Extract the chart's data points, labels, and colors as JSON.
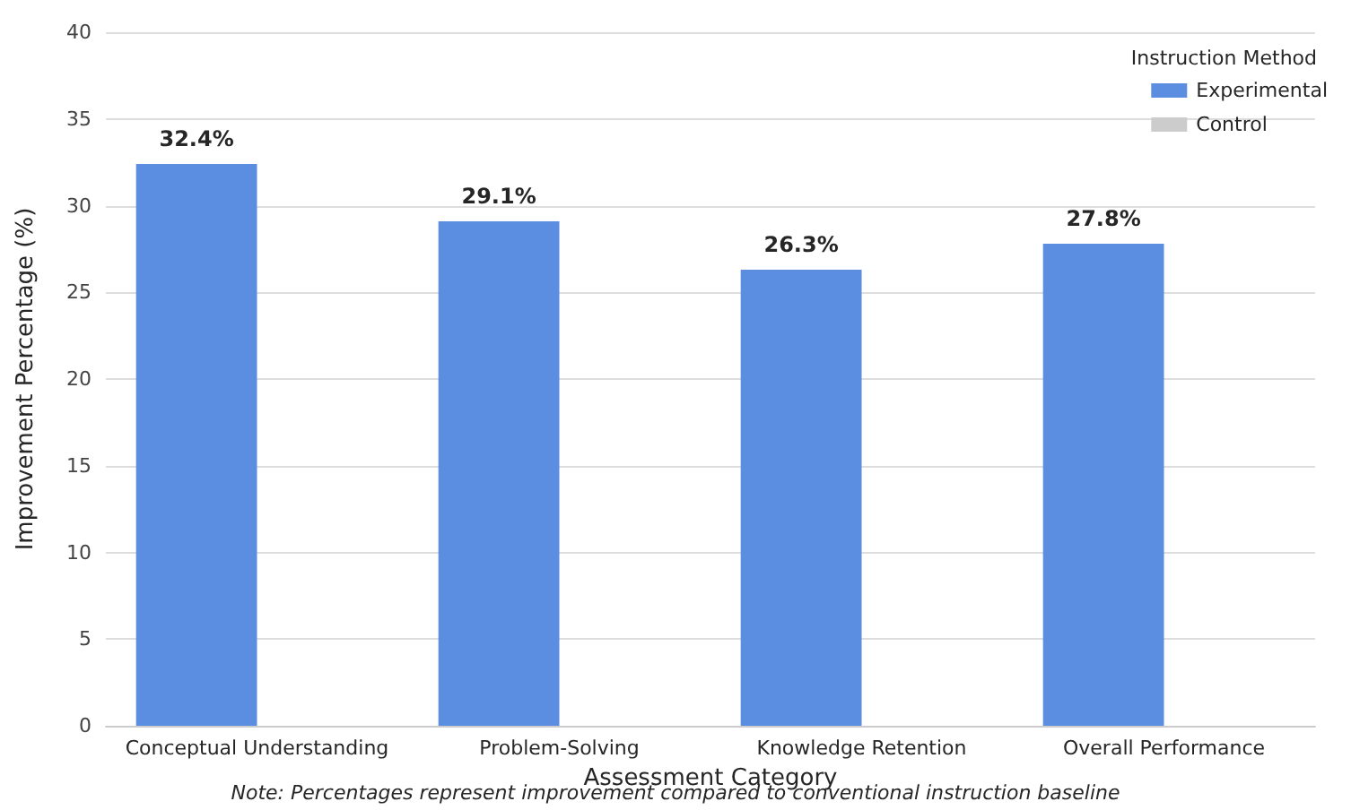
{
  "chart_data": {
    "type": "bar",
    "xlabel": "Assessment Category",
    "ylabel": "Improvement Percentage (%)",
    "legend_title": "Instruction Method",
    "categories": [
      "Conceptual Understanding",
      "Problem-Solving",
      "Knowledge Retention",
      "Overall Performance"
    ],
    "series": [
      {
        "name": "Experimental",
        "color": "#5b8de0",
        "values": [
          32.4,
          29.1,
          26.3,
          27.8
        ],
        "value_labels": [
          "32.4%",
          "29.1%",
          "26.3%",
          "27.8%"
        ]
      },
      {
        "name": "Control",
        "color": "#cccccc",
        "values": [
          0,
          0,
          0,
          0
        ],
        "value_labels": [
          null,
          null,
          null,
          null
        ]
      }
    ],
    "ylim": [
      0,
      40
    ],
    "yticks": [
      0,
      5,
      10,
      15,
      20,
      25,
      30,
      35,
      40
    ],
    "grid": "y",
    "legend": "top right",
    "annotations": [
      "Note: Percentages represent improvement compared to conventional instruction baseline"
    ]
  }
}
